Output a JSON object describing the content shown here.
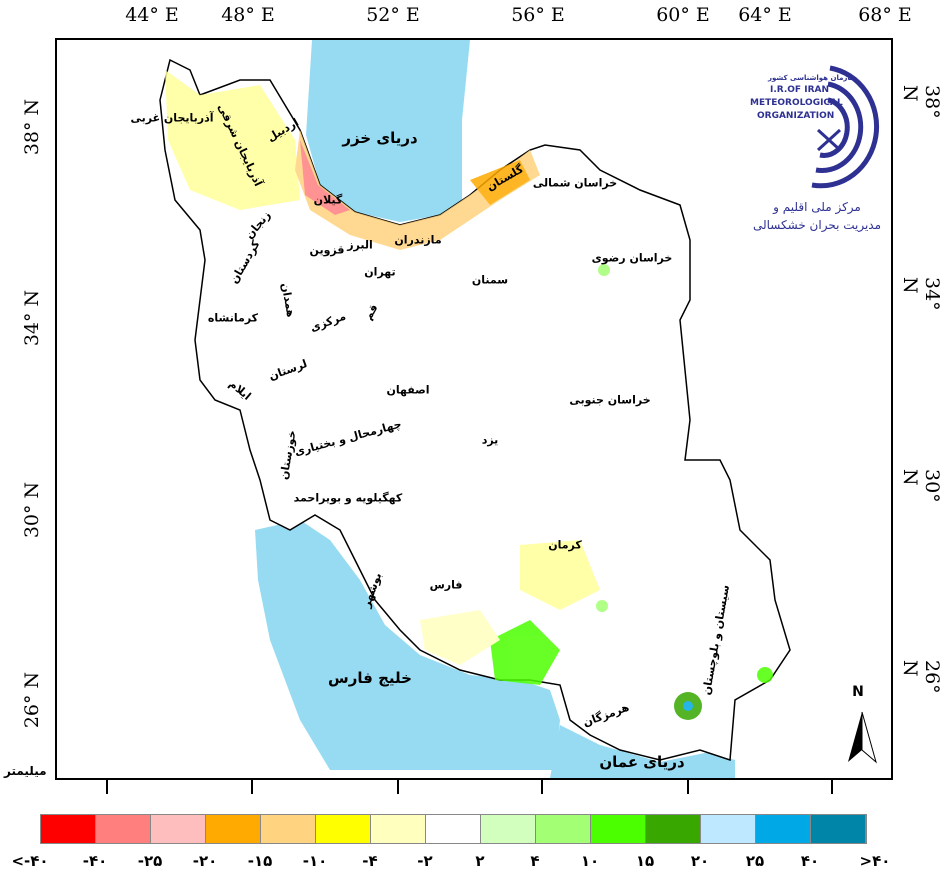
{
  "axes": {
    "longitude_labels": [
      "44° E",
      "48° E",
      "52° E",
      "56° E",
      "60° E",
      "64° E",
      "68° E"
    ],
    "latitude_labels": [
      "38° N",
      "34° N",
      "30° N",
      "26° N"
    ]
  },
  "logo": {
    "org_fa": "سازمان هواشناسی کشور",
    "line1": "I.R.OF IRAN",
    "line2": "METEOROLOGICAL",
    "line3": "ORGANIZATION",
    "center_line1": "مرکز ملی اقلیم و",
    "center_line2": "مدیریت بحران خشکسالی"
  },
  "seas": {
    "caspian": "دریای خزر",
    "persian_gulf": "خلیج فارس",
    "oman": "دریای عمان"
  },
  "provinces": [
    "آذربایجان غربی",
    "آذربایجان شرقی",
    "اردبیل",
    "گیلان",
    "زنجان",
    "مازندران",
    "گلستان",
    "خراسان شمالی",
    "خراسان رضوی",
    "البرز",
    "قزوین",
    "تهران",
    "سمنان",
    "کردستان",
    "همدان",
    "کرمانشاه",
    "مرکزی",
    "قم",
    "لرستان",
    "ایلام",
    "اصفهان",
    "خراسان جنوبی",
    "خوزستان",
    "چهارمحال و بختیاری",
    "یزد",
    "کهگیلویه و بویراحمد",
    "کرمان",
    "فارس",
    "بوشهر",
    "سیستان و بلوچستان",
    "هرمزگان"
  ],
  "north_arrow": "N",
  "legend": {
    "unit": "میلیمتر",
    "colors": [
      "#ff0000",
      "#ff7f7f",
      "#ffbebe",
      "#ffaa00",
      "#ffd37f",
      "#ffff00",
      "#ffffbe",
      "#ffffff",
      "#d3ffbe",
      "#a3ff73",
      "#4cff00",
      "#38a800",
      "#bee8ff",
      "#00a9e6",
      "#0084a8"
    ],
    "labels": [
      "<-۴۰",
      "-۴۰",
      "-۲۵",
      "-۲۰",
      "-۱۵",
      "-۱۰",
      "-۴",
      "-۲",
      "۲",
      "۴",
      "۱۰",
      "۱۵",
      "۲۰",
      "۲۵",
      "۴۰",
      ">۴۰"
    ]
  }
}
